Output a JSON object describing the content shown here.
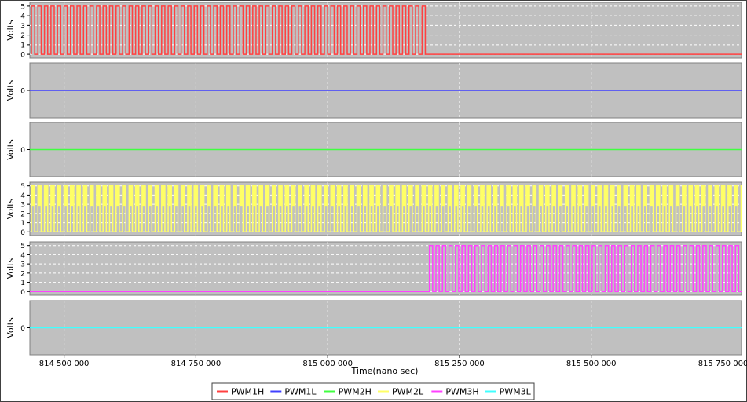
{
  "chart_data": {
    "type": "line",
    "xlabel": "Time(nano sec)",
    "x_ticks": [
      "814 500 000",
      "814 750 000",
      "815 000 000",
      "815 250 000",
      "815 500 000",
      "815 750 000"
    ],
    "x_tick_values": [
      814500000,
      814750000,
      815000000,
      815250000,
      815500000,
      815750000
    ],
    "xlim": [
      814435000,
      815785000
    ],
    "grid": true,
    "legend_position": "bottom-center",
    "panels": [
      {
        "ylabel": "Volts",
        "y_ticks": [
          "0",
          "1",
          "2",
          "3",
          "4",
          "5"
        ],
        "ylim": [
          -0.4,
          5.4
        ],
        "series": [
          {
            "name": "PWM1H",
            "color": "#ff4040",
            "square_wave": true,
            "low": 0,
            "high": 5,
            "start": 814438000,
            "stop": 815188000,
            "period": 12350,
            "after_stop_value": 0
          }
        ]
      },
      {
        "ylabel": "Volts",
        "y_ticks": [
          "0"
        ],
        "ylim": [
          -1,
          1
        ],
        "series": [
          {
            "name": "PWM1L",
            "color": "#4040ff",
            "constant": 0
          }
        ]
      },
      {
        "ylabel": "Volts",
        "y_ticks": [
          "0"
        ],
        "ylim": [
          -1,
          1
        ],
        "series": [
          {
            "name": "PWM2H",
            "color": "#40ff40",
            "constant": 0
          }
        ]
      },
      {
        "ylabel": "Volts",
        "y_ticks": [
          "0",
          "1",
          "2",
          "3",
          "4",
          "5"
        ],
        "ylim": [
          -0.4,
          5.4
        ],
        "series": [
          {
            "name": "PWM2L",
            "color": "#ffff66",
            "square_wave": true,
            "low": 0,
            "high": 5,
            "start": 814438000,
            "stop": 815785000,
            "period": 12350,
            "extra_pulses_per_period": 3
          }
        ]
      },
      {
        "ylabel": "Volts",
        "y_ticks": [
          "0",
          "1",
          "2",
          "3",
          "4",
          "5"
        ],
        "ylim": [
          -0.4,
          5.4
        ],
        "series": [
          {
            "name": "PWM3H",
            "color": "#ff40ff",
            "square_wave": true,
            "low": 0,
            "high": 5,
            "start": 815193000,
            "stop": 815785000,
            "period": 12350,
            "before_start_value": 0
          }
        ]
      },
      {
        "ylabel": "Volts",
        "y_ticks": [
          "0"
        ],
        "ylim": [
          -1,
          1
        ],
        "series": [
          {
            "name": "PWM3L",
            "color": "#40ffff",
            "constant": 0
          }
        ]
      }
    ],
    "legend": [
      {
        "name": "PWM1H",
        "color": "#ff4040"
      },
      {
        "name": "PWM1L",
        "color": "#4040ff"
      },
      {
        "name": "PWM2H",
        "color": "#40ff40"
      },
      {
        "name": "PWM2L",
        "color": "#ffff66"
      },
      {
        "name": "PWM3H",
        "color": "#ff40ff"
      },
      {
        "name": "PWM3L",
        "color": "#40ffff"
      }
    ],
    "colors": {
      "plot_background": "#c0c0c0",
      "grid": "#ffffff",
      "axis_text": "#000000"
    }
  }
}
